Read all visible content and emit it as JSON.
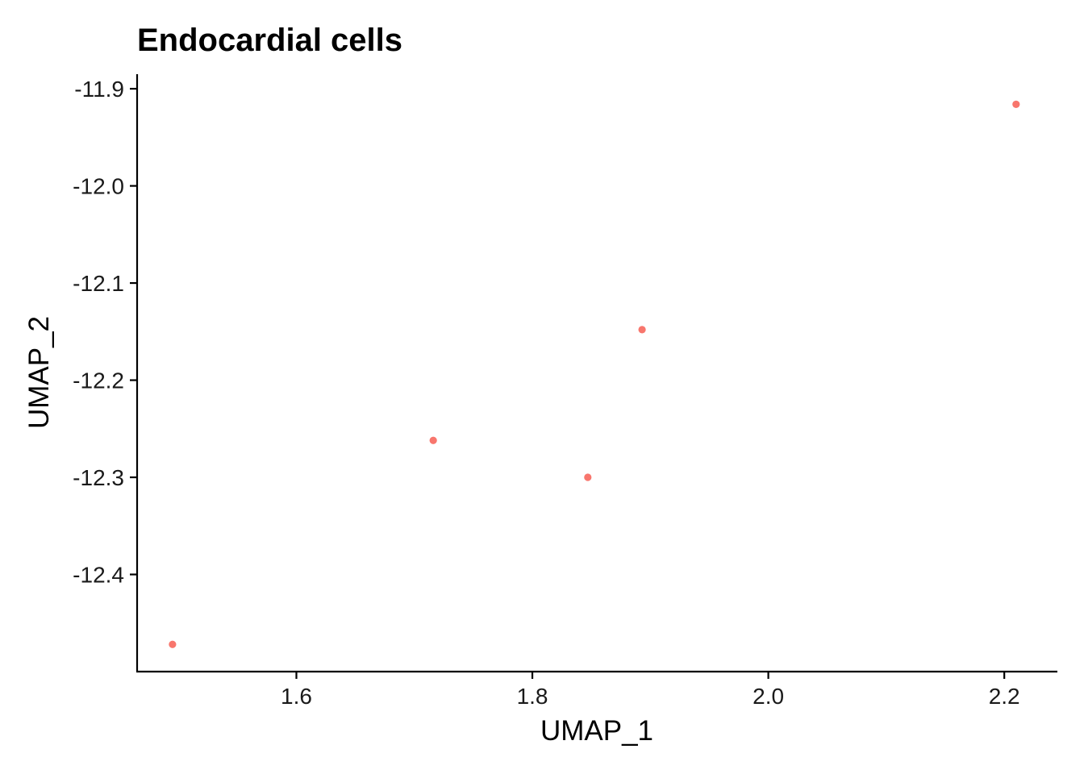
{
  "chart_data": {
    "type": "scatter",
    "title": "Endocardial cells",
    "xlabel": "UMAP_1",
    "ylabel": "UMAP_2",
    "xlim": [
      1.465,
      2.245
    ],
    "ylim": [
      -12.5,
      -11.885
    ],
    "x_ticks": [
      1.6,
      1.8,
      2.0,
      2.2
    ],
    "x_tick_labels": [
      "1.6",
      "1.8",
      "2.0",
      "2.2"
    ],
    "y_ticks": [
      -12.4,
      -12.3,
      -12.2,
      -12.1,
      -12.0,
      -11.9
    ],
    "y_tick_labels": [
      "-12.4",
      "-12.3",
      "-12.2",
      "-12.1",
      "-12.0",
      "-11.9"
    ],
    "grid": false,
    "legend": "none",
    "point_color": "#F8766D",
    "points": [
      {
        "x": 1.495,
        "y": -12.472
      },
      {
        "x": 1.716,
        "y": -12.262
      },
      {
        "x": 1.847,
        "y": -12.3
      },
      {
        "x": 1.893,
        "y": -12.148
      },
      {
        "x": 2.21,
        "y": -11.916
      }
    ]
  }
}
